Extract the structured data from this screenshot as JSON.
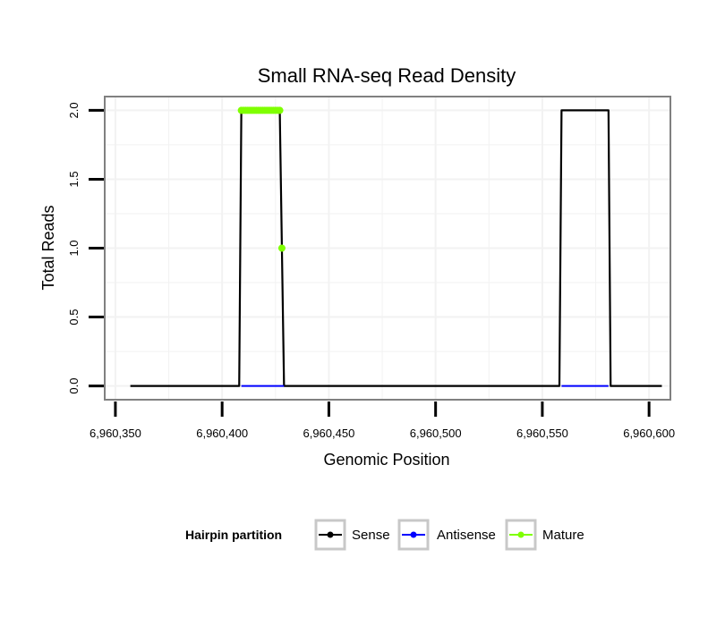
{
  "chart_data": {
    "type": "line",
    "title": "Small RNA-seq Read Density",
    "xlabel": "Genomic Position",
    "ylabel": "Total Reads",
    "xlim": [
      6960345,
      6960610
    ],
    "ylim": [
      -0.1,
      2.1
    ],
    "x_ticks": [
      6960350,
      6960400,
      6960450,
      6960500,
      6960550,
      6960600
    ],
    "x_tick_labels": [
      "6,960,350",
      "6,960,400",
      "6,960,450",
      "6,960,500",
      "6,960,550",
      "6,960,600"
    ],
    "y_ticks": [
      0.0,
      0.5,
      1.0,
      1.5,
      2.0
    ],
    "y_tick_labels": [
      "0.0",
      "0.5",
      "1.0",
      "1.5",
      "2.0"
    ],
    "grid": true,
    "legend": {
      "title": "Hairpin partition",
      "position": "bottom"
    },
    "series": [
      {
        "name": "Sense",
        "color": "#000000",
        "style": "line",
        "x": [
          6960357,
          6960408,
          6960409,
          6960427,
          6960429,
          6960558,
          6960559,
          6960581,
          6960582,
          6960606
        ],
        "y": [
          0,
          0,
          2,
          2,
          0,
          0,
          2,
          2,
          0,
          0
        ]
      },
      {
        "name": "Antisense",
        "color": "#0000ff",
        "style": "line",
        "x": [
          6960409,
          6960429,
          6960559,
          6960581
        ],
        "y": [
          0,
          0,
          0,
          0
        ],
        "segments": [
          [
            0,
            1
          ],
          [
            2,
            3
          ]
        ]
      },
      {
        "name": "Mature",
        "color": "#7fff00",
        "style": "points",
        "x": [
          6960409,
          6960410,
          6960411,
          6960412,
          6960413,
          6960414,
          6960415,
          6960416,
          6960417,
          6960418,
          6960419,
          6960420,
          6960421,
          6960422,
          6960423,
          6960424,
          6960425,
          6960426,
          6960427,
          6960428
        ],
        "y": [
          2,
          2,
          2,
          2,
          2,
          2,
          2,
          2,
          2,
          2,
          2,
          2,
          2,
          2,
          2,
          2,
          2,
          2,
          2,
          1
        ]
      }
    ]
  }
}
